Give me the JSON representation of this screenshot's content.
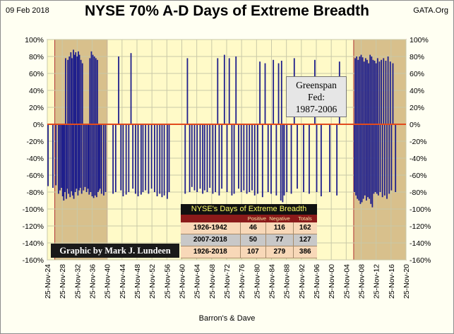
{
  "header": {
    "date": "09 Feb 2018",
    "title": "NYSE 70% A-D Days of Extreme Breadth",
    "source": "GATA.Org"
  },
  "annotations": {
    "greenspan_line1": "Greenspan",
    "greenspan_line2": "Fed:",
    "greenspan_line3": "1987-2006",
    "credit": "Graphic by Mark J. Lundeen",
    "x_caption": "Barron's & Dave"
  },
  "colors": {
    "bar": "#1f1f8c",
    "zero_line": "#e24a1c",
    "plot_bg": "#fffac8",
    "shade": "#d8c08c",
    "shade_border": "#b03030"
  },
  "stats_table": {
    "title": "NYSE's Days of Extreme Breadth",
    "headers": [
      "",
      "Positive",
      "Negative",
      "Totals"
    ],
    "rows": [
      {
        "period": "1926-1942",
        "positive": "46",
        "negative": "116",
        "total": "162",
        "bg": "#f8d8b8"
      },
      {
        "period": "2007-2018",
        "positive": "50",
        "negative": "77",
        "total": "127",
        "bg": "#c8c8c8"
      },
      {
        "period": "1926-2018",
        "positive": "107",
        "negative": "279",
        "total": "386",
        "bg": "#f8d8b8"
      }
    ]
  },
  "chart_data": {
    "type": "bar",
    "title": "NYSE 70% A-D Days of Extreme Breadth",
    "xlabel": "Barron's & Dave",
    "ylabel": "",
    "ylim": [
      -160,
      100
    ],
    "xlim": [
      "1924-11-25",
      "2020-11-25"
    ],
    "y_ticks": [
      "100%",
      "80%",
      "60%",
      "40%",
      "20%",
      "0%",
      "-20%",
      "-40%",
      "-60%",
      "-80%",
      "-100%",
      "-120%",
      "-140%",
      "-160%"
    ],
    "x_ticks": [
      "25-Nov-24",
      "25-Nov-28",
      "25-Nov-32",
      "25-Nov-36",
      "25-Nov-40",
      "25-Nov-44",
      "25-Nov-48",
      "25-Nov-52",
      "25-Nov-56",
      "25-Nov-60",
      "25-Nov-64",
      "25-Nov-68",
      "25-Nov-72",
      "25-Nov-76",
      "25-Nov-80",
      "25-Nov-84",
      "25-Nov-88",
      "25-Nov-92",
      "25-Nov-96",
      "25-Nov-00",
      "25-Nov-04",
      "25-Nov-08",
      "25-Nov-12",
      "25-Nov-16",
      "25-Nov-20"
    ],
    "shaded_periods": [
      [
        "1926-11-25",
        "1940-11-25"
      ],
      "1987-1987",
      [
        "2006-11-25",
        "2020-11-25"
      ]
    ],
    "grid": true,
    "series": [
      {
        "name": "",
        "points": [
          [
            1925.1,
            -73
          ],
          [
            1926.4,
            -75
          ],
          [
            1927.2,
            -72
          ],
          [
            1927.9,
            -82
          ],
          [
            1928.3,
            -78
          ],
          [
            1928.7,
            -75
          ],
          [
            1929.0,
            -85
          ],
          [
            1929.3,
            -90
          ],
          [
            1929.6,
            -80
          ],
          [
            1929.8,
            78
          ],
          [
            1930.0,
            -88
          ],
          [
            1930.2,
            -76
          ],
          [
            1930.4,
            76
          ],
          [
            1930.6,
            -82
          ],
          [
            1930.8,
            80
          ],
          [
            1931.0,
            -86
          ],
          [
            1931.2,
            85
          ],
          [
            1931.4,
            -79
          ],
          [
            1931.5,
            78
          ],
          [
            1931.7,
            -84
          ],
          [
            1931.9,
            88
          ],
          [
            1932.0,
            -88
          ],
          [
            1932.2,
            82
          ],
          [
            1932.4,
            -80
          ],
          [
            1932.5,
            85
          ],
          [
            1932.7,
            -76
          ],
          [
            1932.9,
            80
          ],
          [
            1933.1,
            -84
          ],
          [
            1933.2,
            86
          ],
          [
            1933.4,
            -78
          ],
          [
            1933.5,
            82
          ],
          [
            1933.7,
            -75
          ],
          [
            1933.9,
            76
          ],
          [
            1934.1,
            -82
          ],
          [
            1934.3,
            72
          ],
          [
            1934.6,
            -78
          ],
          [
            1935.0,
            -74
          ],
          [
            1935.4,
            -80
          ],
          [
            1935.8,
            -76
          ],
          [
            1936.1,
            -83
          ],
          [
            1936.3,
            78
          ],
          [
            1936.5,
            -80
          ],
          [
            1936.7,
            86
          ],
          [
            1936.9,
            -85
          ],
          [
            1937.1,
            82
          ],
          [
            1937.3,
            -87
          ],
          [
            1937.5,
            80
          ],
          [
            1937.7,
            -84
          ],
          [
            1937.9,
            78
          ],
          [
            1938.1,
            -86
          ],
          [
            1938.3,
            76
          ],
          [
            1938.5,
            -80
          ],
          [
            1938.7,
            -78
          ],
          [
            1939.0,
            -76
          ],
          [
            1939.4,
            -82
          ],
          [
            1940.0,
            -84
          ],
          [
            1940.5,
            -80
          ],
          [
            1942.5,
            -82
          ],
          [
            1943.2,
            -80
          ],
          [
            1944.0,
            80
          ],
          [
            1944.6,
            -78
          ],
          [
            1945.2,
            -85
          ],
          [
            1946.0,
            -83
          ],
          [
            1946.7,
            -80
          ],
          [
            1947.3,
            84
          ],
          [
            1947.8,
            -76
          ],
          [
            1948.5,
            -82
          ],
          [
            1949.2,
            -85
          ],
          [
            1950.0,
            -83
          ],
          [
            1950.5,
            -80
          ],
          [
            1951.2,
            -78
          ],
          [
            1952.0,
            -82
          ],
          [
            1952.8,
            -76
          ],
          [
            1953.6,
            -80
          ],
          [
            1954.3,
            -85
          ],
          [
            1955.0,
            -82
          ],
          [
            1955.6,
            -86
          ],
          [
            1956.2,
            -84
          ],
          [
            1957.0,
            -88
          ],
          [
            1957.5,
            -80
          ],
          [
            1961.8,
            -82
          ],
          [
            1962.4,
            78
          ],
          [
            1963.0,
            -80
          ],
          [
            1963.6,
            -74
          ],
          [
            1964.3,
            -78
          ],
          [
            1965.0,
            -80
          ],
          [
            1965.8,
            -76
          ],
          [
            1966.5,
            -82
          ],
          [
            1967.0,
            -78
          ],
          [
            1967.7,
            -80
          ],
          [
            1968.4,
            -75
          ],
          [
            1969.2,
            -82
          ],
          [
            1969.9,
            -80
          ],
          [
            1970.5,
            78
          ],
          [
            1970.9,
            -84
          ],
          [
            1971.6,
            -76
          ],
          [
            1972.3,
            82
          ],
          [
            1973.0,
            -80
          ],
          [
            1973.6,
            78
          ],
          [
            1974.3,
            -84
          ],
          [
            1974.9,
            -82
          ],
          [
            1975.4,
            80
          ],
          [
            1976.1,
            -76
          ],
          [
            1976.8,
            -80
          ],
          [
            1977.5,
            -78
          ],
          [
            1978.3,
            -82
          ],
          [
            1979.0,
            -80
          ],
          [
            1979.7,
            -78
          ],
          [
            1980.4,
            -84
          ],
          [
            1981.2,
            -82
          ],
          [
            1981.8,
            74
          ],
          [
            1982.5,
            -86
          ],
          [
            1983.2,
            72
          ],
          [
            1984.0,
            -80
          ],
          [
            1984.8,
            -82
          ],
          [
            1985.4,
            76
          ],
          [
            1986.2,
            -84
          ],
          [
            1986.8,
            72
          ],
          [
            1987.4,
            -90
          ],
          [
            1987.6,
            75
          ],
          [
            1987.9,
            -92
          ],
          [
            1988.3,
            -84
          ],
          [
            1989.0,
            -80
          ],
          [
            1990.2,
            -82
          ],
          [
            1991.0,
            78
          ],
          [
            1991.8,
            -76
          ],
          [
            1993.5,
            -80
          ],
          [
            1995.0,
            -82
          ],
          [
            1996.5,
            76
          ],
          [
            1997.0,
            -80
          ],
          [
            1998.2,
            -85
          ],
          [
            2000.5,
            -80
          ],
          [
            2002.4,
            -84
          ],
          [
            2003.1,
            74
          ],
          [
            2007.1,
            -80
          ],
          [
            2007.3,
            78
          ],
          [
            2007.5,
            -84
          ],
          [
            2007.7,
            80
          ],
          [
            2007.9,
            -88
          ],
          [
            2008.1,
            76
          ],
          [
            2008.3,
            -90
          ],
          [
            2008.5,
            80
          ],
          [
            2008.7,
            -94
          ],
          [
            2008.9,
            82
          ],
          [
            2009.1,
            -92
          ],
          [
            2009.3,
            79
          ],
          [
            2009.5,
            -88
          ],
          [
            2009.7,
            74
          ],
          [
            2009.9,
            -84
          ],
          [
            2010.1,
            78
          ],
          [
            2010.3,
            -90
          ],
          [
            2010.5,
            76
          ],
          [
            2010.7,
            -86
          ],
          [
            2010.9,
            72
          ],
          [
            2011.1,
            -88
          ],
          [
            2011.3,
            82
          ],
          [
            2011.5,
            -94
          ],
          [
            2011.7,
            80
          ],
          [
            2011.9,
            -98
          ],
          [
            2012.1,
            76
          ],
          [
            2012.3,
            -82
          ],
          [
            2012.5,
            75
          ],
          [
            2012.7,
            -80
          ],
          [
            2012.9,
            72
          ],
          [
            2013.1,
            -82
          ],
          [
            2013.3,
            78
          ],
          [
            2013.5,
            -84
          ],
          [
            2013.8,
            74
          ],
          [
            2014.0,
            -80
          ],
          [
            2014.3,
            76
          ],
          [
            2014.6,
            -86
          ],
          [
            2014.9,
            78
          ],
          [
            2015.2,
            -84
          ],
          [
            2015.5,
            75
          ],
          [
            2015.8,
            -88
          ],
          [
            2016.1,
            80
          ],
          [
            2016.4,
            -82
          ],
          [
            2016.7,
            74
          ],
          [
            2017.0,
            -78
          ],
          [
            2017.4,
            72
          ],
          [
            2018.1,
            -80
          ]
        ]
      }
    ]
  }
}
